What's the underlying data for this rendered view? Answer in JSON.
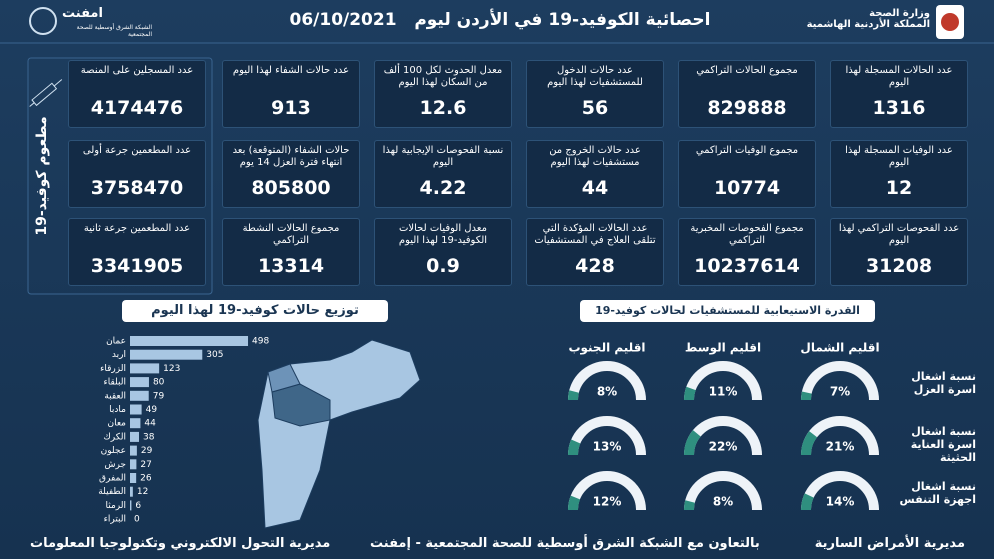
{
  "header": {
    "title": "احصائية الكوفيد-19 في الأردن ليوم",
    "date": "06/10/2021",
    "ministry": [
      "وزارة الصحة",
      "المملكة الأردنية الهاشمية"
    ],
    "partner_logo": "امفنت",
    "partner_sub": "الشبكة الشرق أوسطية للصحة المجتمعية"
  },
  "cards": [
    {
      "label": "عدد الحالات المسجلة لهذا اليوم",
      "value": 1316
    },
    {
      "label": "عدد الوفيات المسجلة لهذا اليوم",
      "value": 12
    },
    {
      "label": "عدد الفحوصات التراكمي لهذا اليوم",
      "value": 31208
    },
    {
      "label": "مجموع الحالات التراكمي",
      "value": 829888
    },
    {
      "label": "مجموع الوفيات التراكمي",
      "value": 10774
    },
    {
      "label": "مجموع الفحوصات المخبرية التراكمي",
      "value": 10237614
    },
    {
      "label": "عدد حالات الدخول للمستشفيات لهذا اليوم",
      "value": 56
    },
    {
      "label": "عدد حالات الخروج من مستشفيات لهذا اليوم",
      "value": 44
    },
    {
      "label": "عدد الحالات المؤكدة التي تتلقى العلاج في المستشفيات",
      "value": 428
    },
    {
      "label": "معدل الحدوث لكل 100 ألف من السكان لهذا اليوم",
      "value": 12.6
    },
    {
      "label": "نسبة الفحوصات الإيجابية لهذا اليوم",
      "value": 4.22
    },
    {
      "label": "معدل الوفيات لحالات الكوفيد-19 لهذا اليوم",
      "value": 0.9
    },
    {
      "label": "عدد حالات الشفاء لهذا اليوم",
      "value": 913
    },
    {
      "label": "حالات الشفاء (المتوقعة) بعد انتهاء فترة العزل 14 يوم",
      "value": 805800
    },
    {
      "label": "مجموع الحالات النشطة التراكمي",
      "value": 13314
    }
  ],
  "vaccination": {
    "label": "مطعوم كوفيد-19",
    "cards": [
      {
        "label": "عدد المسجلين على المنصة",
        "value": 4174476
      },
      {
        "label": "عدد المطعمين جرعة أولى",
        "value": 3758470
      },
      {
        "label": "عدد المطعمين جرعة ثانية",
        "value": 3341905
      }
    ]
  },
  "bar_chart": {
    "title": "توزيع حالات كوفيد-19 لهذا اليوم",
    "categories": [
      "عمان",
      "اربد",
      "الزرقاء",
      "البلقاء",
      "العقبة",
      "مادبا",
      "معان",
      "الكرك",
      "عجلون",
      "جرش",
      "المفرق",
      "الطفيلة",
      "الرمثا",
      "البتراء"
    ],
    "values": [
      498,
      305,
      123,
      80,
      79,
      49,
      44,
      38,
      29,
      27,
      26,
      12,
      6,
      0
    ]
  },
  "capacity": {
    "title": "القدرة الاستيعابية للمستشفيات لحالات كوفيد-19",
    "regions": [
      "اقليم الشمال",
      "اقليم الوسط",
      "اقليم الجنوب"
    ],
    "rows": [
      {
        "label": "نسبة اشغال اسرة العزل",
        "values": [
          7,
          11,
          8
        ],
        "value_labels": [
          "7%",
          "11%",
          "8%"
        ]
      },
      {
        "label": "نسبة اشغال اسرة العناية الحثيثة",
        "values": [
          21,
          22,
          13
        ],
        "value_labels": [
          "21%",
          "22%",
          "13%"
        ]
      },
      {
        "label": "نسبة اشغال اجهزة التنفس",
        "values": [
          14,
          8,
          12
        ],
        "value_labels": [
          "14%",
          "8%",
          "12%"
        ]
      }
    ]
  },
  "footer": [
    "مديرية الأمراض السارية",
    "بالتعاون مع الشبكة الشرق أوسطية للصحة المجتمعية - إمفنت",
    "مديرية التحول الالكتروني وتكنولوجيا المعلومات"
  ]
}
